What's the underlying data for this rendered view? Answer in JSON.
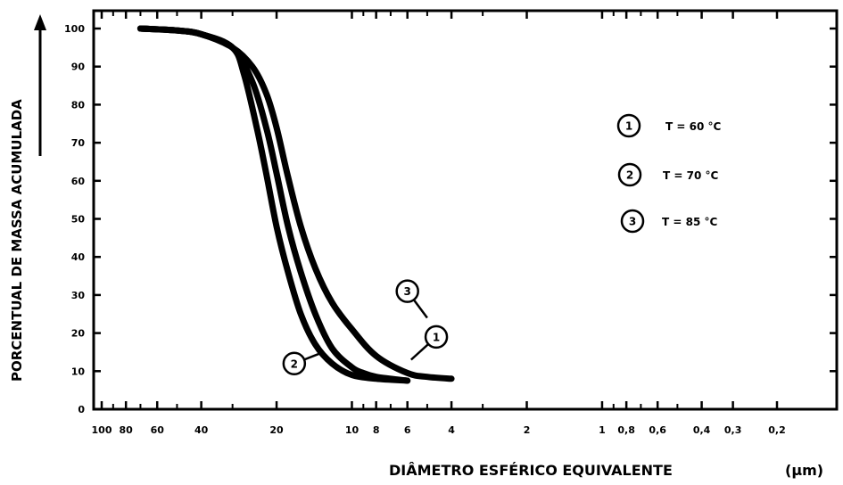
{
  "chart_data": {
    "type": "line",
    "x_scale": "log",
    "x_direction": "decreasing",
    "x_ticks": [
      {
        "value": 100,
        "label": "100"
      },
      {
        "value": 80,
        "label": "80"
      },
      {
        "value": 60,
        "label": "60"
      },
      {
        "value": 40,
        "label": "40"
      },
      {
        "value": 20,
        "label": "20"
      },
      {
        "value": 10,
        "label": "10"
      },
      {
        "value": 8,
        "label": "8"
      },
      {
        "value": 6,
        "label": "6"
      },
      {
        "value": 4,
        "label": "4"
      },
      {
        "value": 2,
        "label": "2"
      },
      {
        "value": 1,
        "label": "1"
      },
      {
        "value": 0.8,
        "label": "0,8"
      },
      {
        "value": 0.6,
        "label": "0,6"
      },
      {
        "value": 0.4,
        "label": "0,4"
      },
      {
        "value": 0.3,
        "label": "0,3"
      },
      {
        "value": 0.2,
        "label": "0,2"
      }
    ],
    "x_minor_ticks": [
      90,
      70,
      50,
      30,
      9,
      7,
      5,
      3,
      0.9,
      0.7,
      0.5
    ],
    "xlim": [
      100,
      0.2
    ],
    "ylim": [
      0,
      100
    ],
    "y_ticks": [
      0,
      10,
      20,
      30,
      40,
      50,
      60,
      70,
      80,
      90,
      100
    ],
    "xlabel": "DIÂMETRO ESFÉRICO EQUIVALENTE",
    "xlabel_unit": "(µm)",
    "ylabel": "PORCENTUAL DE MASSA ACUMULADA",
    "grid": false,
    "series": [
      {
        "name": "T = 60 °C",
        "marker": "1",
        "x": [
          70,
          50,
          40,
          30,
          25,
          22,
          20,
          18,
          16,
          14,
          12,
          10,
          9,
          8,
          7,
          6
        ],
        "y": [
          100,
          99.5,
          98.5,
          95,
          86,
          74,
          62,
          48,
          36,
          25,
          16,
          11,
          9.5,
          8.5,
          8,
          7.5
        ]
      },
      {
        "name": "T = 70 °C",
        "marker": "2",
        "x": [
          70,
          50,
          40,
          30,
          27,
          24,
          22,
          20,
          18,
          16,
          14,
          12,
          10,
          8,
          6
        ],
        "y": [
          100,
          99.5,
          98.5,
          95,
          88,
          74,
          62,
          48,
          36,
          25,
          17,
          12,
          9,
          8,
          7.5
        ]
      },
      {
        "name": "T = 85 °C",
        "marker": "3",
        "x": [
          70,
          50,
          40,
          30,
          25,
          22,
          20,
          18,
          16,
          14,
          12,
          10,
          8,
          6,
          5,
          4
        ],
        "y": [
          100,
          99.5,
          98.5,
          95,
          90,
          83,
          74,
          61,
          48,
          37,
          28,
          21,
          14,
          9.5,
          8.5,
          8
        ]
      }
    ],
    "legend": {
      "placement": "right",
      "entries": [
        {
          "marker": "1",
          "text": "T = 60 °C"
        },
        {
          "marker": "2",
          "text": "T = 70 °C"
        },
        {
          "marker": "3",
          "text": "T = 85 °C"
        }
      ]
    },
    "curve_markers": [
      {
        "marker": "3",
        "x": 6,
        "y": 31
      },
      {
        "marker": "1",
        "x": 4.6,
        "y": 19
      },
      {
        "marker": "2",
        "x": 17,
        "y": 12
      }
    ]
  }
}
